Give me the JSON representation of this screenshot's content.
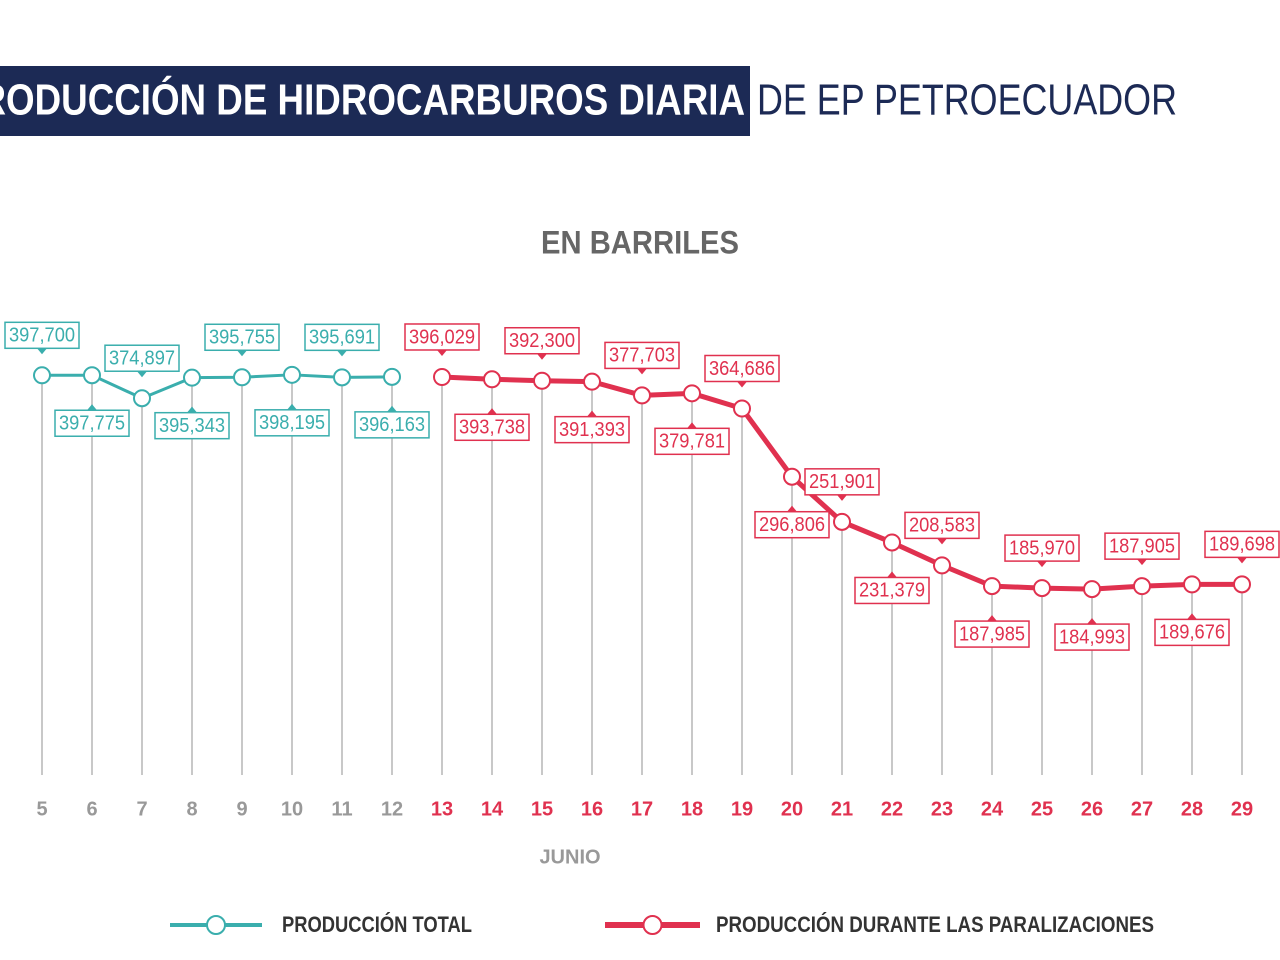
{
  "chart_data": {
    "type": "line",
    "title": "PRODUCCIÓN DE HIDROCARBUROS DIARIA",
    "title_suffix": "DE EP PETROECUADOR",
    "subtitle": "EN BARRILES",
    "x_label": "JUNIO",
    "categories": [
      "5",
      "6",
      "7",
      "8",
      "9",
      "10",
      "11",
      "12",
      "13",
      "14",
      "15",
      "16",
      "17",
      "18",
      "19",
      "20",
      "21",
      "22",
      "23",
      "24",
      "25",
      "26",
      "27",
      "28",
      "29"
    ],
    "ylim": [
      0,
      400000
    ],
    "series": [
      {
        "name": "PRODUCCIÓN TOTAL",
        "color": "#3aaead",
        "values": [
          397700,
          397775,
          374897,
          395343,
          395755,
          398195,
          395691,
          396163,
          null,
          null,
          null,
          null,
          null,
          null,
          null,
          null,
          null,
          null,
          null,
          null,
          null,
          null,
          null,
          null,
          null
        ],
        "value_labels": [
          "397,700",
          "397,775",
          "374,897",
          "395,343",
          "395,755",
          "398,195",
          "395,691",
          "396,163",
          null,
          null,
          null,
          null,
          null,
          null,
          null,
          null,
          null,
          null,
          null,
          null,
          null,
          null,
          null,
          null,
          null
        ]
      },
      {
        "name": "PRODUCCIÓN DURANTE LAS PARALIZACIONES",
        "color": "#e0314f",
        "values": [
          null,
          null,
          null,
          null,
          null,
          null,
          null,
          null,
          396029,
          393738,
          392300,
          391393,
          377703,
          379781,
          364686,
          296806,
          251901,
          231379,
          208583,
          187985,
          185970,
          184993,
          187905,
          189676,
          189698
        ],
        "value_labels": [
          null,
          null,
          null,
          null,
          null,
          null,
          null,
          null,
          "396,029",
          "393,738",
          "392,300",
          "391,393",
          "377,703",
          "379,781",
          "364,686",
          "296,806",
          "251,901",
          "231,379",
          "208,583",
          "187,985",
          "185,970",
          "184,993",
          "187,905",
          "189,676",
          "189,698"
        ]
      }
    ]
  }
}
